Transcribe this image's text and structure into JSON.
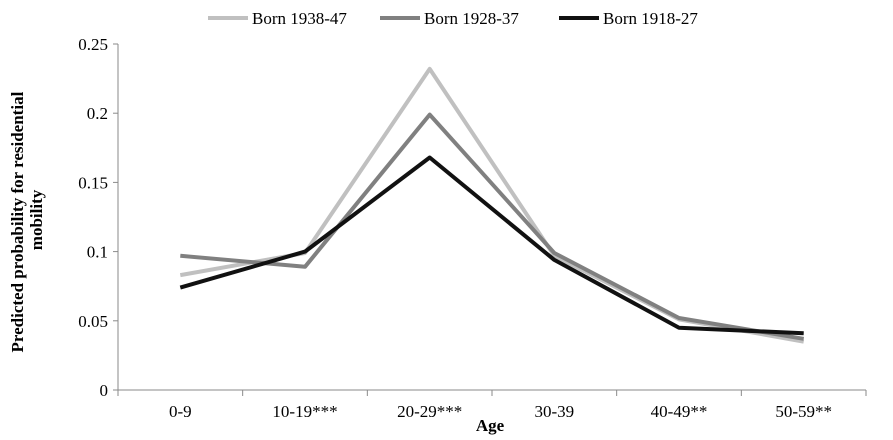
{
  "chart_data": {
    "type": "line",
    "title": "",
    "xlabel": "Age",
    "ylabel_lines": [
      "Predicted probability  for residential",
      "mobility"
    ],
    "categories": [
      "0-9",
      "10-19***",
      "20-29***",
      "30-39",
      "40-49**",
      "50-59**"
    ],
    "yticks": [
      "0",
      "0.05",
      "0.1",
      "0.15",
      "0.2",
      "0.25"
    ],
    "ylim": [
      0,
      0.25
    ],
    "grid": false,
    "legend_position": "top",
    "series": [
      {
        "name": "Born 1938-47",
        "color": "#c0c0c0",
        "values": [
          0.083,
          0.099,
          0.232,
          0.097,
          0.051,
          0.035
        ]
      },
      {
        "name": "Born 1928-37",
        "color": "#808080",
        "values": [
          0.097,
          0.089,
          0.199,
          0.099,
          0.052,
          0.037
        ]
      },
      {
        "name": "Born 1918-27",
        "color": "#111111",
        "values": [
          0.074,
          0.1,
          0.168,
          0.094,
          0.045,
          0.041
        ]
      }
    ]
  }
}
